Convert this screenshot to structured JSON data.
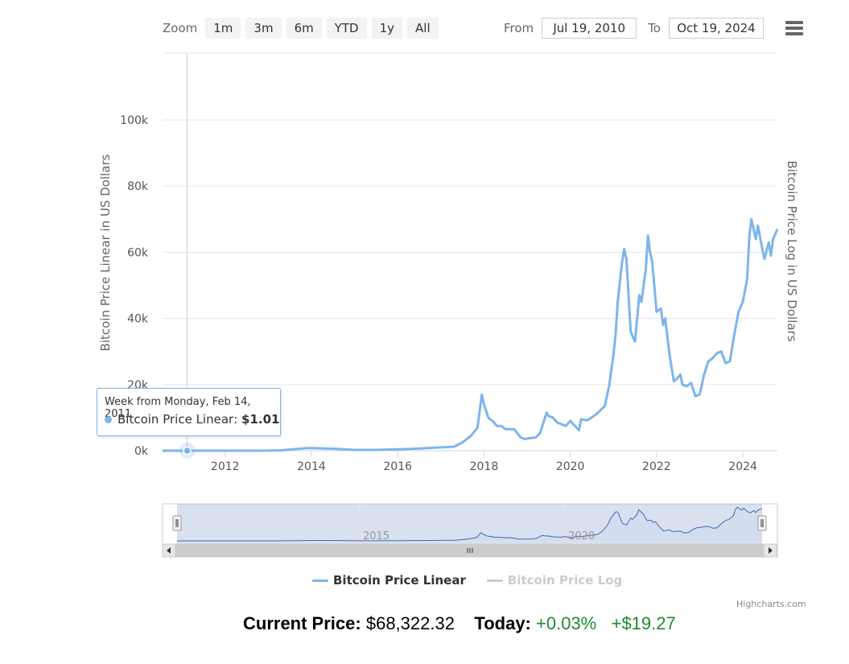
{
  "toolbar": {
    "zoom_label": "Zoom",
    "zoom_buttons": [
      "1m",
      "3m",
      "6m",
      "YTD",
      "1y",
      "All"
    ],
    "from_label": "From",
    "from_value": "Jul 19, 2010",
    "to_label": "To",
    "to_value": "Oct 19, 2024"
  },
  "menu_icon": "hamburger-icon",
  "tooltip": {
    "header": "Week from Monday, Feb 14, 2011",
    "series": "Bitcoin Price Linear",
    "value": "$1.01"
  },
  "footer": {
    "current_label": "Current Price:",
    "current_value": "$68,322.32",
    "today_label": "Today:",
    "today_pct": "+0.03%",
    "today_abs": "+$19.27"
  },
  "credits": "Highcharts.com",
  "colors": {
    "linear": "#7cb5ec",
    "log": "#cccccc",
    "gain": "#1c8c2a"
  },
  "chart_data": {
    "type": "line",
    "title": "",
    "ylabel": "Bitcoin Price Linear in US Dollars",
    "ylabel_right": "Bitcoin Price Log in US Dollars",
    "ylim": [
      0,
      100000
    ],
    "xlim": [
      2010.55,
      2024.8
    ],
    "y_ticks": [
      0,
      20000,
      40000,
      60000,
      80000,
      100000
    ],
    "y_tick_labels": [
      "0k",
      "20k",
      "40k",
      "60k",
      "80k",
      "100k"
    ],
    "x_ticks": [
      2012,
      2014,
      2016,
      2018,
      2020,
      2022,
      2024
    ],
    "x_tick_labels": [
      "2012",
      "2014",
      "2016",
      "2018",
      "2020",
      "2022",
      "2024"
    ],
    "navigator_x_ticks": [
      2015,
      2020
    ],
    "navigator_x_tick_labels": [
      "2015",
      "2020"
    ],
    "grid": true,
    "legend_position": "bottom-center",
    "series": [
      {
        "name": "Bitcoin Price Linear",
        "visible": true,
        "x": [
          2010.55,
          2011.12,
          2012.0,
          2013.0,
          2013.3,
          2013.9,
          2014.0,
          2014.5,
          2015.0,
          2015.5,
          2016.0,
          2016.5,
          2017.0,
          2017.3,
          2017.5,
          2017.7,
          2017.85,
          2017.95,
          2018.0,
          2018.1,
          2018.2,
          2018.3,
          2018.4,
          2018.5,
          2018.6,
          2018.7,
          2018.85,
          2018.95,
          2019.0,
          2019.2,
          2019.3,
          2019.45,
          2019.5,
          2019.6,
          2019.7,
          2019.9,
          2020.0,
          2020.2,
          2020.25,
          2020.4,
          2020.6,
          2020.8,
          2020.9,
          2021.0,
          2021.05,
          2021.1,
          2021.2,
          2021.25,
          2021.3,
          2021.4,
          2021.5,
          2021.6,
          2021.65,
          2021.75,
          2021.8,
          2021.85,
          2021.9,
          2022.0,
          2022.1,
          2022.15,
          2022.2,
          2022.3,
          2022.4,
          2022.45,
          2022.55,
          2022.6,
          2022.7,
          2022.8,
          2022.9,
          2023.0,
          2023.1,
          2023.2,
          2023.3,
          2023.4,
          2023.5,
          2023.6,
          2023.7,
          2023.8,
          2023.9,
          2024.0,
          2024.1,
          2024.15,
          2024.2,
          2024.3,
          2024.35,
          2024.45,
          2024.5,
          2024.6,
          2024.65,
          2024.7,
          2024.8
        ],
        "y": [
          0,
          1.01,
          5,
          13,
          130,
          800,
          800,
          600,
          250,
          250,
          430,
          650,
          1000,
          1200,
          2500,
          4500,
          7000,
          17000,
          14000,
          10000,
          9000,
          7500,
          7500,
          6500,
          6500,
          6500,
          4000,
          3500,
          3700,
          4000,
          5300,
          11500,
          10500,
          10000,
          8500,
          7500,
          9000,
          6200,
          9500,
          9200,
          11000,
          13500,
          19500,
          29000,
          35000,
          45000,
          57000,
          61000,
          58000,
          36000,
          33000,
          47000,
          45000,
          55000,
          65000,
          60000,
          57000,
          42000,
          43000,
          38000,
          40000,
          29000,
          21000,
          21500,
          23000,
          20000,
          19500,
          20500,
          16500,
          17000,
          23000,
          27000,
          28000,
          29500,
          30000,
          26500,
          27000,
          35000,
          42000,
          45000,
          52000,
          65000,
          70000,
          64000,
          68000,
          61000,
          58000,
          63000,
          59000,
          64000,
          67000
        ]
      },
      {
        "name": "Bitcoin Price Log",
        "visible": false,
        "x": [],
        "y": []
      }
    ]
  }
}
